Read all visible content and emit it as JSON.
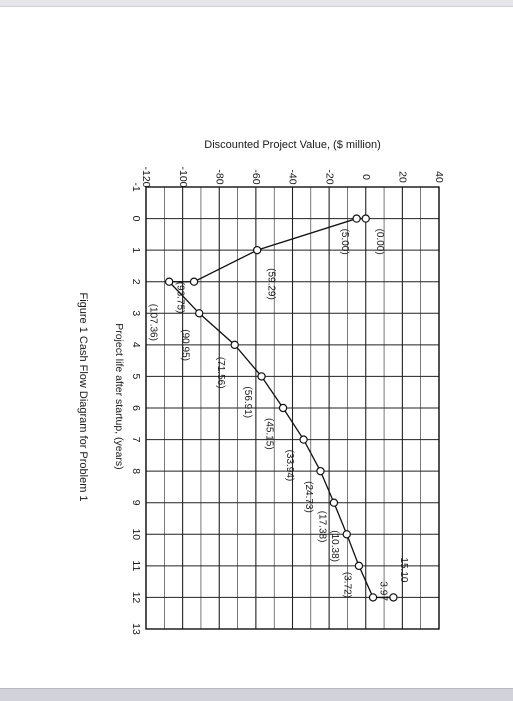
{
  "caption": "Figure 1 Cash Flow Diagram for Problem 1",
  "chart_data": {
    "type": "line",
    "orientation": "rotated 90° clockwise",
    "title": "",
    "ylabel": "Discounted Project Value, ($ million)",
    "xlabel": "Project life after startup, (years)",
    "xlim": [
      -1,
      13
    ],
    "ylim": [
      -120,
      40
    ],
    "x_ticks": [
      "-1",
      "0",
      "1",
      "2",
      "3",
      "4",
      "5",
      "6",
      "7",
      "8",
      "9",
      "10",
      "11",
      "12",
      "13"
    ],
    "y_ticks": [
      "-120",
      "-100",
      "-80",
      "-60",
      "-40",
      "-20",
      "0",
      "20",
      "40"
    ],
    "grid": true,
    "series": [
      {
        "x": [
          0,
          0,
          1,
          2,
          2,
          3,
          4,
          5,
          6,
          7,
          8,
          9,
          10,
          11,
          12,
          12
        ],
        "y": [
          0,
          -5.0,
          -59.29,
          -93.75,
          -107.36,
          -90.95,
          -71.56,
          -56.91,
          -45.15,
          -33.94,
          -24.73,
          -17.38,
          -10.38,
          -3.72,
          3.97,
          15.1
        ]
      }
    ],
    "data_labels": [
      "(0.00)",
      "(5.00)",
      "(59.29)",
      "(93.75)",
      "(107.36)",
      "(90.95)",
      "(71.56)",
      "(56.91)",
      "(45.15)",
      "(33.94)",
      "(24.73)",
      "(17.38)",
      "(10.38)",
      "(3.72)",
      "3.97",
      "15.10"
    ]
  }
}
